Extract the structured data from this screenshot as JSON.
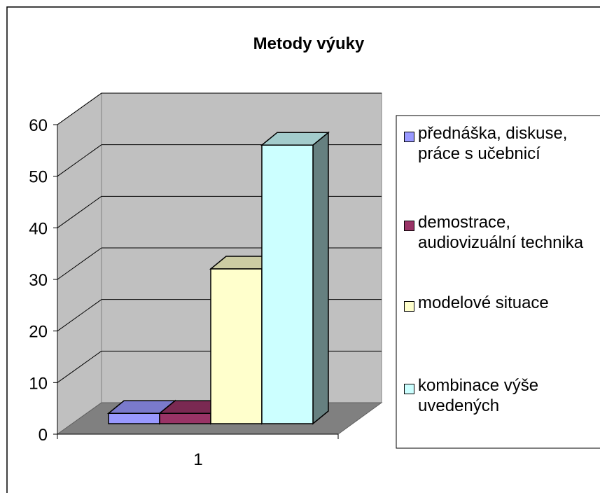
{
  "chart_data": {
    "type": "bar3d",
    "title": "Metody výuky",
    "categories": [
      "1"
    ],
    "series": [
      {
        "name": "přednáška, diskuse, práce s učebnicí",
        "color": "#9999ff",
        "values": [
          2
        ]
      },
      {
        "name": "demostrace, audiovizuální technika",
        "color": "#993366",
        "values": [
          2
        ]
      },
      {
        "name": "modelové situace",
        "color": "#ffffcc",
        "values": [
          30
        ]
      },
      {
        "name": "kombinace výše uvedených",
        "color": "#ccffff",
        "values": [
          54
        ]
      }
    ],
    "ylim": [
      0,
      60
    ],
    "yticks": [
      0,
      10,
      20,
      30,
      40,
      50,
      60
    ],
    "grid": true,
    "legend": "right"
  }
}
